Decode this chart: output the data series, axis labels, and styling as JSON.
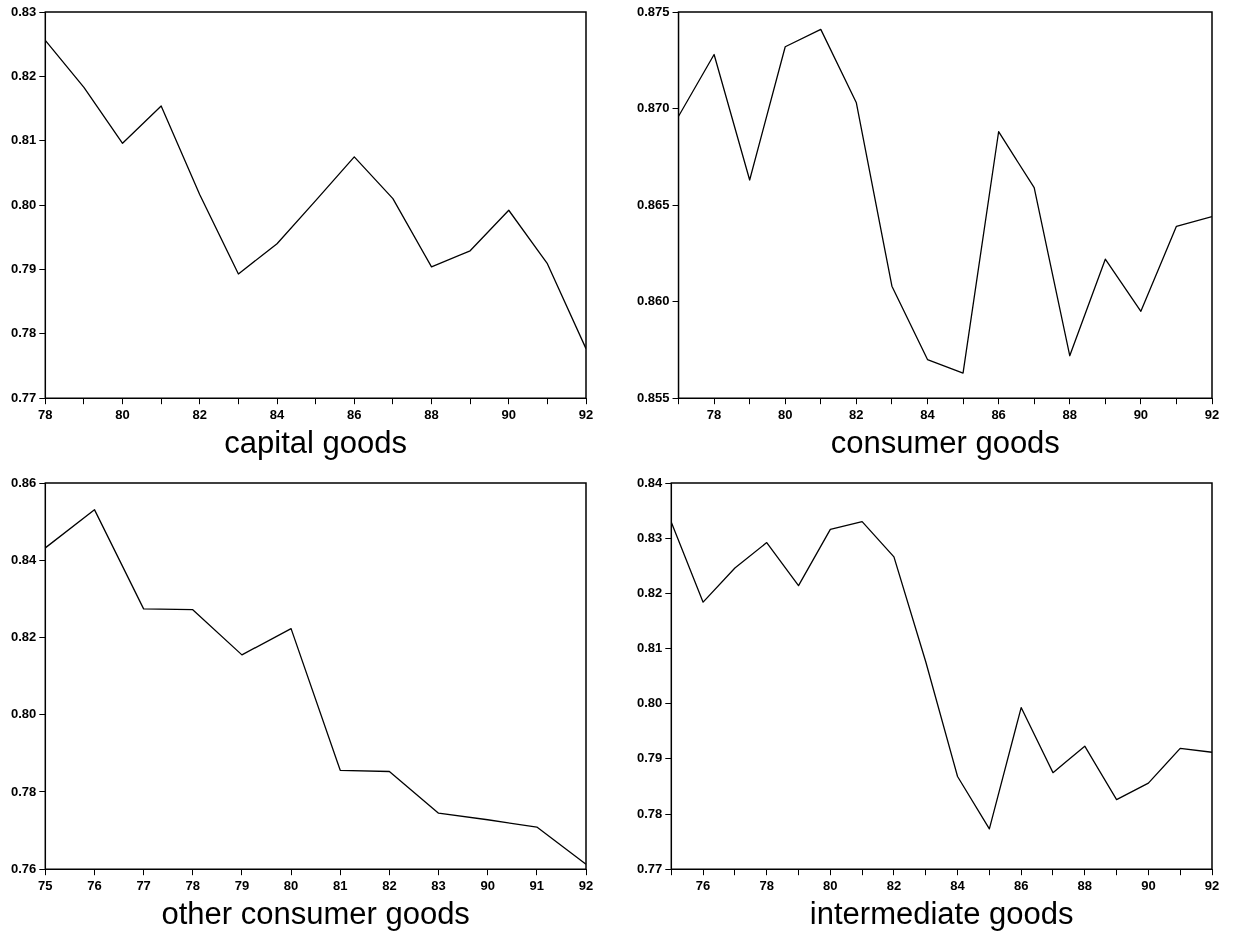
{
  "chart_data": [
    {
      "type": "line",
      "xlabel": "capital goods",
      "x": [
        78,
        79,
        80,
        81,
        82,
        83,
        84,
        85,
        86,
        87,
        88,
        89,
        90,
        91,
        92
      ],
      "xlim": [
        78,
        92
      ],
      "xticks": [
        78,
        {
          "value": 79,
          "label": null
        },
        80,
        {
          "value": 81,
          "label": null
        },
        82,
        {
          "value": 83,
          "label": null
        },
        84,
        {
          "value": 85,
          "label": null
        },
        86,
        {
          "value": 87,
          "label": null
        },
        88,
        {
          "value": 89,
          "label": null
        },
        90,
        {
          "value": 91,
          "label": null
        },
        92
      ],
      "ylim": [
        0.77,
        0.83
      ],
      "yticks": [
        {
          "value": 0.77,
          "label": "0.77"
        },
        {
          "value": 0.78,
          "label": "0.78"
        },
        {
          "value": 0.79,
          "label": "0.79"
        },
        {
          "value": 0.8,
          "label": "0.80"
        },
        {
          "value": 0.81,
          "label": "0.81"
        },
        {
          "value": 0.82,
          "label": "0.82"
        },
        {
          "value": 0.83,
          "label": "0.83"
        }
      ],
      "color": "#000000",
      "values": [
        0.8256,
        0.8183,
        0.8096,
        0.8154,
        0.8016,
        0.7893,
        0.794,
        0.8007,
        0.8075,
        0.801,
        0.7904,
        0.7929,
        0.7992,
        0.7909,
        0.7777
      ]
    },
    {
      "type": "line",
      "xlabel": "consumer goods",
      "x": [
        77,
        78,
        79,
        80,
        81,
        82,
        83,
        84,
        85,
        86,
        87,
        88,
        89,
        90,
        91,
        92
      ],
      "xlim": [
        77,
        92
      ],
      "xticks": [
        {
          "value": 77,
          "label": null
        },
        78,
        {
          "value": 79,
          "label": null
        },
        80,
        {
          "value": 81,
          "label": null
        },
        82,
        {
          "value": 83,
          "label": null
        },
        84,
        {
          "value": 85,
          "label": null
        },
        86,
        {
          "value": 87,
          "label": null
        },
        88,
        {
          "value": 89,
          "label": null
        },
        90,
        {
          "value": 91,
          "label": null
        },
        92
      ],
      "ylim": [
        0.855,
        0.875
      ],
      "yticks": [
        {
          "value": 0.855,
          "label": "0.855"
        },
        {
          "value": 0.86,
          "label": "0.860"
        },
        {
          "value": 0.865,
          "label": "0.865"
        },
        {
          "value": 0.87,
          "label": "0.870"
        },
        {
          "value": 0.875,
          "label": "0.875"
        }
      ],
      "color": "#000000",
      "values": [
        0.8696,
        0.8728,
        0.8663,
        0.8732,
        0.8741,
        0.8703,
        0.8608,
        0.857,
        0.8563,
        0.8688,
        0.8659,
        0.8572,
        0.8622,
        0.8595,
        0.8639,
        0.8644
      ]
    },
    {
      "type": "line",
      "xlabel": "other consumer goods",
      "categories": [
        "75",
        "76",
        "77",
        "78",
        "79",
        "80",
        "81",
        "82",
        "83",
        "90",
        "91",
        "92"
      ],
      "ylim": [
        0.76,
        0.86
      ],
      "yticks": [
        {
          "value": 0.76,
          "label": "0.76"
        },
        {
          "value": 0.78,
          "label": "0.78"
        },
        {
          "value": 0.8,
          "label": "0.80"
        },
        {
          "value": 0.82,
          "label": "0.82"
        },
        {
          "value": 0.84,
          "label": "0.84"
        },
        {
          "value": 0.86,
          "label": "0.86"
        }
      ],
      "color": "#000000",
      "values": [
        0.8432,
        0.8531,
        0.8274,
        0.8272,
        0.8155,
        0.8223,
        0.7856,
        0.7853,
        0.7745,
        0.7728,
        0.7709,
        0.7613
      ]
    },
    {
      "type": "line",
      "xlabel": "intermediate goods",
      "x": [
        75,
        76,
        77,
        78,
        79,
        80,
        81,
        82,
        83,
        84,
        85,
        86,
        87,
        88,
        89,
        90,
        91,
        92
      ],
      "xlim": [
        75,
        92
      ],
      "xticks": [
        {
          "value": 75,
          "label": null
        },
        76,
        {
          "value": 77,
          "label": null
        },
        78,
        {
          "value": 79,
          "label": null
        },
        80,
        {
          "value": 81,
          "label": null
        },
        82,
        {
          "value": 83,
          "label": null
        },
        84,
        {
          "value": 85,
          "label": null
        },
        86,
        {
          "value": 87,
          "label": null
        },
        88,
        {
          "value": 89,
          "label": null
        },
        90,
        {
          "value": 91,
          "label": null
        },
        92
      ],
      "ylim": [
        0.77,
        0.84
      ],
      "yticks": [
        {
          "value": 0.77,
          "label": "0.77"
        },
        {
          "value": 0.78,
          "label": "0.78"
        },
        {
          "value": 0.79,
          "label": "0.79"
        },
        {
          "value": 0.8,
          "label": "0.80"
        },
        {
          "value": 0.81,
          "label": "0.81"
        },
        {
          "value": 0.82,
          "label": "0.82"
        },
        {
          "value": 0.83,
          "label": "0.83"
        },
        {
          "value": 0.84,
          "label": "0.84"
        }
      ],
      "color": "#000000",
      "values": [
        0.8329,
        0.8184,
        0.8246,
        0.8292,
        0.8214,
        0.8316,
        0.833,
        0.8266,
        0.8076,
        0.7868,
        0.7773,
        0.7993,
        0.7875,
        0.7923,
        0.7826,
        0.7856,
        0.7919,
        0.7912
      ]
    }
  ]
}
